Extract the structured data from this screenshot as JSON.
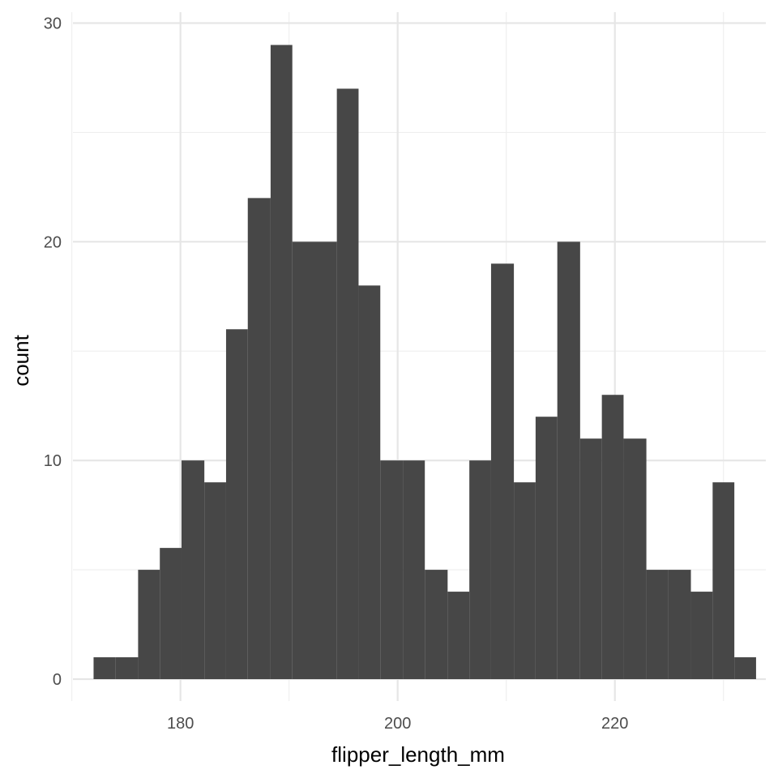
{
  "chart_data": {
    "type": "bar",
    "title": "",
    "xlabel": "flipper_length_mm",
    "ylabel": "count",
    "xlim": [
      170.1,
      233.9
    ],
    "ylim": [
      -1.0,
      30.5
    ],
    "x_major_ticks": [
      180,
      200,
      220
    ],
    "x_minor_ticks": [
      170,
      190,
      210,
      230
    ],
    "y_major_ticks": [
      0,
      10,
      20,
      30
    ],
    "y_minor_ticks": [
      5,
      15,
      25
    ],
    "grid": true,
    "bin_width": 2.03,
    "bins": [
      {
        "x0": 172.0,
        "x1": 174.0,
        "count": 1
      },
      {
        "x0": 174.0,
        "x1": 176.1,
        "count": 1
      },
      {
        "x0": 176.1,
        "x1": 178.1,
        "count": 5
      },
      {
        "x0": 178.1,
        "x1": 180.1,
        "count": 6
      },
      {
        "x0": 180.1,
        "x1": 182.2,
        "count": 10
      },
      {
        "x0": 182.2,
        "x1": 184.2,
        "count": 9
      },
      {
        "x0": 184.2,
        "x1": 186.2,
        "count": 16
      },
      {
        "x0": 186.2,
        "x1": 188.3,
        "count": 22
      },
      {
        "x0": 188.3,
        "x1": 190.3,
        "count": 29
      },
      {
        "x0": 190.3,
        "x1": 192.3,
        "count": 20
      },
      {
        "x0": 192.3,
        "x1": 194.4,
        "count": 20
      },
      {
        "x0": 194.4,
        "x1": 196.4,
        "count": 27
      },
      {
        "x0": 196.4,
        "x1": 198.4,
        "count": 18
      },
      {
        "x0": 198.4,
        "x1": 200.5,
        "count": 10
      },
      {
        "x0": 200.5,
        "x1": 202.5,
        "count": 10
      },
      {
        "x0": 202.5,
        "x1": 204.6,
        "count": 5
      },
      {
        "x0": 204.6,
        "x1": 206.6,
        "count": 4
      },
      {
        "x0": 206.6,
        "x1": 208.6,
        "count": 10
      },
      {
        "x0": 208.6,
        "x1": 210.7,
        "count": 19
      },
      {
        "x0": 210.7,
        "x1": 212.7,
        "count": 9
      },
      {
        "x0": 212.7,
        "x1": 214.7,
        "count": 12
      },
      {
        "x0": 214.7,
        "x1": 216.8,
        "count": 20
      },
      {
        "x0": 216.8,
        "x1": 218.8,
        "count": 11
      },
      {
        "x0": 218.8,
        "x1": 220.8,
        "count": 13
      },
      {
        "x0": 220.8,
        "x1": 222.9,
        "count": 11
      },
      {
        "x0": 222.9,
        "x1": 224.9,
        "count": 5
      },
      {
        "x0": 224.9,
        "x1": 227.0,
        "count": 5
      },
      {
        "x0": 227.0,
        "x1": 229.0,
        "count": 4
      },
      {
        "x0": 229.0,
        "x1": 231.0,
        "count": 9
      },
      {
        "x0": 231.0,
        "x1": 233.0,
        "count": 1
      }
    ],
    "colors": {
      "bar": "#474747",
      "background": "#ffffff"
    }
  }
}
